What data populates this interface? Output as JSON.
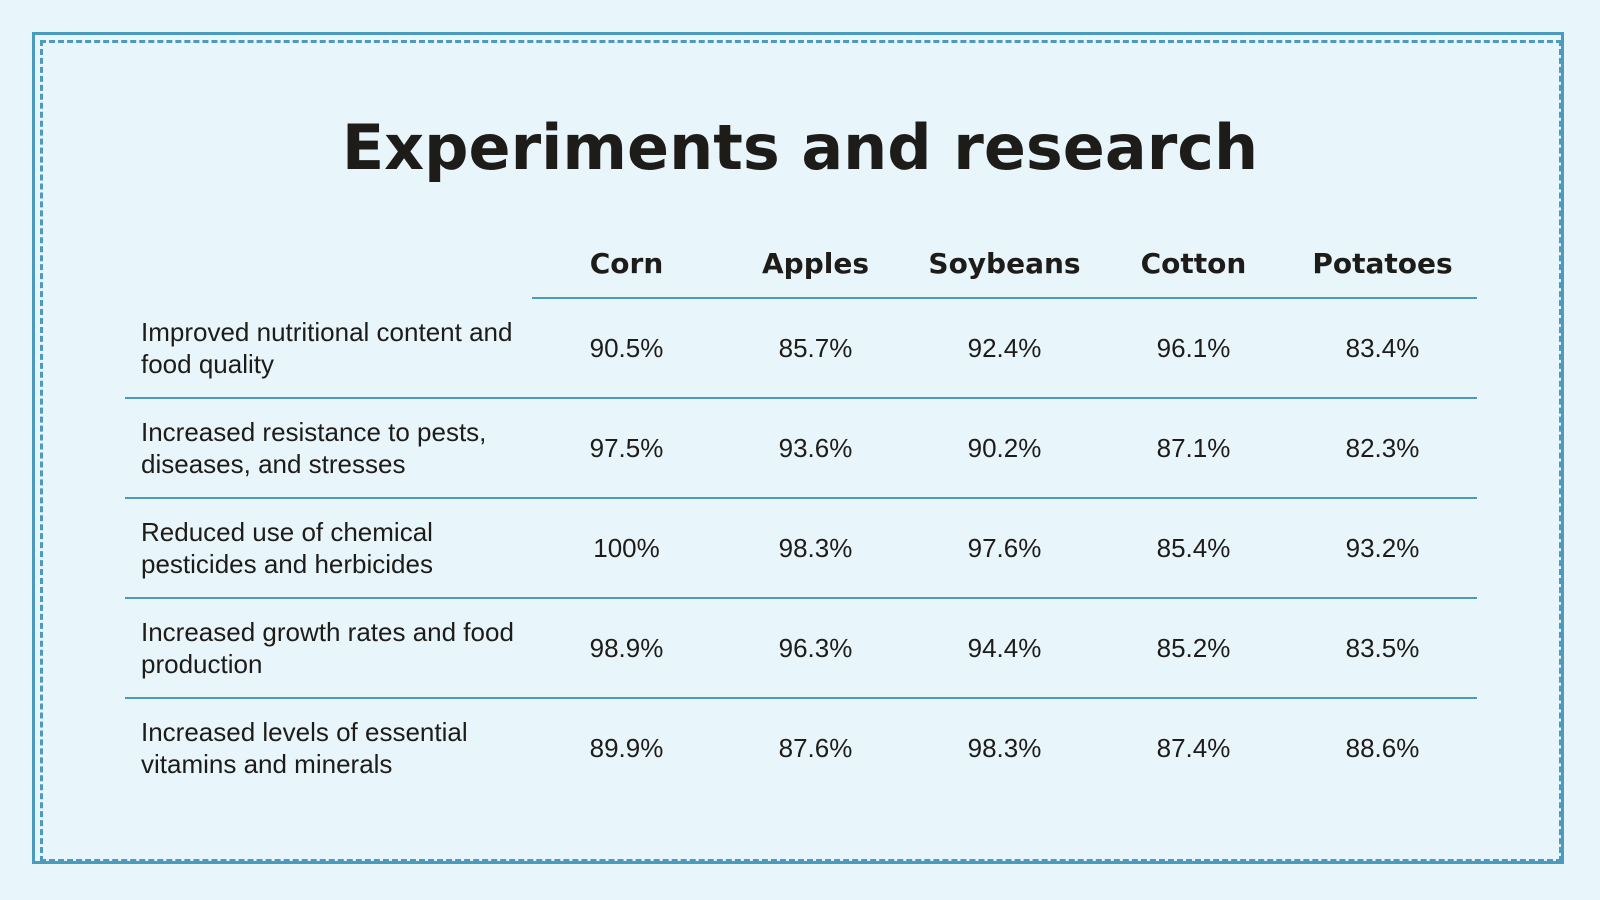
{
  "title": "Experiments and research",
  "table": {
    "columns": [
      "Corn",
      "Apples",
      "Soybeans",
      "Cotton",
      "Potatoes"
    ],
    "rows": [
      {
        "label": "Improved nutritional content and food quality",
        "values": [
          "90.5%",
          "85.7%",
          "92.4%",
          "96.1%",
          "83.4%"
        ]
      },
      {
        "label": "Increased resistance to pests, diseases, and stresses",
        "values": [
          "97.5%",
          "93.6%",
          "90.2%",
          "87.1%",
          "82.3%"
        ]
      },
      {
        "label": "Reduced use of chemical pesticides and herbicides",
        "values": [
          "100%",
          "98.3%",
          "97.6%",
          "85.4%",
          "93.2%"
        ]
      },
      {
        "label": "Increased growth rates and food production",
        "values": [
          "98.9%",
          "96.3%",
          "94.4%",
          "85.2%",
          "83.5%"
        ]
      },
      {
        "label": "Increased levels of essential vitamins and minerals",
        "values": [
          "89.9%",
          "87.6%",
          "98.3%",
          "87.4%",
          "88.6%"
        ]
      }
    ]
  }
}
